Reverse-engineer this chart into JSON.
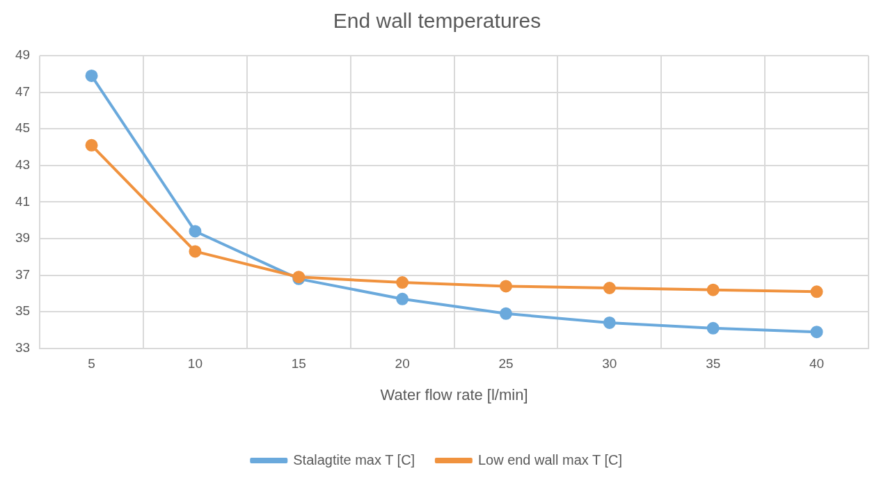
{
  "chart_data": {
    "type": "line",
    "title": "End wall temperatures",
    "xlabel": "Water flow rate [l/min]",
    "categories": [
      "5",
      "10",
      "15",
      "20",
      "25",
      "30",
      "35",
      "40"
    ],
    "series": [
      {
        "name": "Stalagtite max T [C]",
        "color": "#6aa9dc",
        "values": [
          47.9,
          39.4,
          36.8,
          35.7,
          34.9,
          34.4,
          34.1,
          33.9
        ]
      },
      {
        "name": "Low end wall max T [C]",
        "color": "#f0923e",
        "values": [
          44.1,
          38.3,
          36.9,
          36.6,
          36.4,
          36.3,
          36.2,
          36.1
        ]
      }
    ],
    "ylim": [
      33,
      49
    ],
    "yticks": [
      33,
      35,
      37,
      39,
      41,
      43,
      45,
      47,
      49
    ],
    "grid": true,
    "legend": "bottom",
    "marker": "circle",
    "line_style": "solid"
  }
}
